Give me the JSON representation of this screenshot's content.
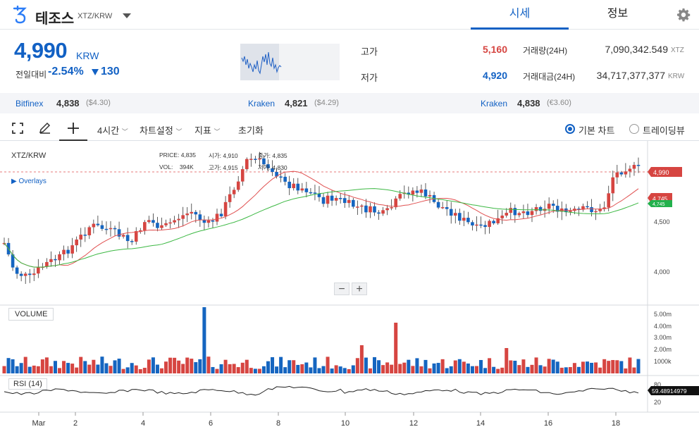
{
  "header": {
    "coin_name": "테조스",
    "pair": "XTZ/KRW",
    "tabs": [
      {
        "label": "시세",
        "active": true
      },
      {
        "label": "정보",
        "active": false
      }
    ]
  },
  "price": {
    "current": "4,990",
    "unit": "KRW",
    "change_label": "전일대비",
    "change_rate": "-2.54%",
    "change_amount": "130"
  },
  "stats": {
    "high_label": "고가",
    "high_value": "5,160",
    "low_label": "저가",
    "low_value": "4,920",
    "volume_label": "거래량(24H)",
    "volume_value": "7,090,342.549",
    "volume_unit": "XTZ",
    "turnover_label": "거래대금(24H)",
    "turnover_value": "34,717,377,377",
    "turnover_unit": "KRW"
  },
  "exchanges": [
    {
      "name": "Bitfinex",
      "price": "4,838",
      "sub": "($4.30)"
    },
    {
      "name": "Kraken",
      "price": "4,821",
      "sub": "($4.29)"
    },
    {
      "name": "Kraken",
      "price": "4,838",
      "sub": "(€3.60)"
    }
  ],
  "toolbar": {
    "interval": "4시간",
    "chart_settings": "차트설정",
    "indicators": "지표",
    "reset": "초기화",
    "basic_chart": "기본 차트",
    "tradingview": "트레이딩뷰"
  },
  "chart": {
    "title": "XTZ/KRW",
    "overlays": "Overlays",
    "ohlc": {
      "price_label": "PRICE:",
      "price": "4,835",
      "time_label": "시가:",
      "open": "4,910",
      "close_label": "종가:",
      "close": "4,835",
      "vol_label": "VOL:",
      "vol": "394K",
      "high_label": "고가:",
      "high": "4,915",
      "low_label": "저가:",
      "low": "4,830"
    },
    "volume_label": "VOLUME",
    "rsi_label": "RSI (14)",
    "zoom_out": "−",
    "zoom_in": "+",
    "price_axis": [
      "4,500",
      "4,000"
    ],
    "volume_axis": [
      "5.00m",
      "4.00m",
      "3.00m",
      "2.00m",
      "1000k"
    ],
    "rsi_axis": [
      "80",
      "20"
    ],
    "price_badges": [
      {
        "value": "4,990",
        "color": "#d64541"
      },
      {
        "value": "4,745",
        "color": "#d64541"
      },
      {
        "value": "4,745",
        "color": "#22b14c"
      }
    ],
    "rsi_value": "59.48914979",
    "x_axis": [
      "Mar",
      "2",
      "4",
      "6",
      "8",
      "10",
      "12",
      "14",
      "16",
      "18"
    ],
    "colors": {
      "up": "#d64541",
      "down": "#1565c0",
      "ma_short": "#e05050",
      "ma_long": "#3cb843",
      "current_line": "#e05050"
    }
  }
}
